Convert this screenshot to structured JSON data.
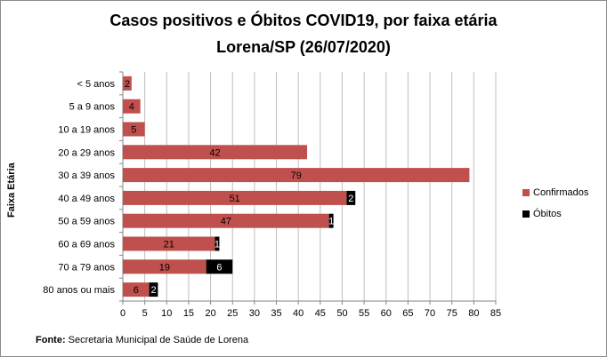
{
  "title_line1": "Casos positivos  e Óbitos COVID19, por faixa etária",
  "title_line2": "Lorena/SP (26/07/2020)",
  "footer": {
    "label": "Fonte:",
    "text": " Secretaria Municipal de Saúde de Lorena"
  },
  "colors": {
    "confirmed": "#c0504d",
    "deaths": "#000000",
    "grid": "#bfbfbf",
    "axis": "#868686"
  },
  "chart_data": {
    "type": "bar",
    "orientation": "horizontal",
    "stacked": true,
    "title": "Casos positivos  e Óbitos COVID19, por faixa etária Lorena/SP (26/07/2020)",
    "ylabel": "Faixa Etária",
    "xlabel": "",
    "xlim": [
      0,
      85
    ],
    "xticks": [
      0,
      5,
      10,
      15,
      20,
      25,
      30,
      35,
      40,
      45,
      50,
      55,
      60,
      65,
      70,
      75,
      80,
      85
    ],
    "grid": "vertical",
    "legend_position": "right",
    "categories": [
      "< 5 anos",
      "5 a 9 anos",
      "10 a 19 anos",
      "20 a 29 anos",
      "30 a 39 anos",
      "40 a 49 anos",
      "50 a 59 anos",
      "60 a 69 anos",
      "70 a 79 anos",
      "80 anos ou mais"
    ],
    "series": [
      {
        "name": "Confirmados",
        "values": [
          2,
          4,
          5,
          42,
          79,
          51,
          47,
          21,
          19,
          6
        ]
      },
      {
        "name": "Óbitos",
        "values": [
          0,
          0,
          0,
          0,
          0,
          2,
          1,
          1,
          6,
          2
        ]
      }
    ]
  }
}
